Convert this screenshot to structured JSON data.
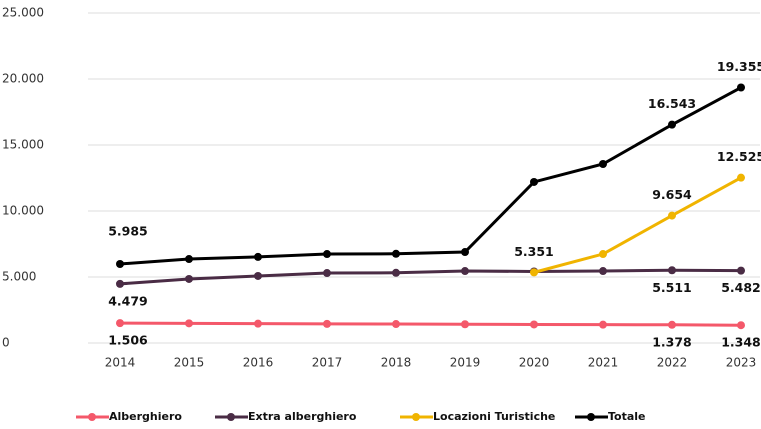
{
  "chart_data": {
    "type": "line",
    "categories": [
      "2014",
      "2015",
      "2016",
      "2017",
      "2018",
      "2019",
      "2020",
      "2021",
      "2022",
      "2023"
    ],
    "series": [
      {
        "name": "Alberghiero",
        "color": "#f4586a",
        "values": [
          1506,
          1490,
          1465,
          1450,
          1435,
          1420,
          1405,
          1390,
          1378,
          1348
        ],
        "value_labels": [
          "1.506",
          null,
          null,
          null,
          null,
          null,
          null,
          null,
          "1.378",
          "1.348"
        ]
      },
      {
        "name": "Extra alberghiero",
        "color": "#4a2c45",
        "values": [
          4479,
          4850,
          5080,
          5300,
          5320,
          5450,
          5420,
          5450,
          5511,
          5482
        ],
        "value_labels": [
          "4.479",
          null,
          null,
          null,
          null,
          null,
          null,
          null,
          "5.511",
          "5.482"
        ]
      },
      {
        "name": "Locazioni Turistiche",
        "color": "#f0b400",
        "values": [
          null,
          null,
          null,
          null,
          null,
          null,
          5351,
          6740,
          9654,
          12525
        ],
        "value_labels": [
          null,
          null,
          null,
          null,
          null,
          null,
          "5.351",
          null,
          "9.654",
          "12.525"
        ]
      },
      {
        "name": "Totale",
        "color": "#000000",
        "values": [
          5985,
          6360,
          6520,
          6740,
          6760,
          6890,
          12200,
          13560,
          16543,
          19355
        ],
        "value_labels": [
          "5.985",
          null,
          null,
          null,
          null,
          null,
          null,
          null,
          "16.543",
          "19.355"
        ]
      }
    ],
    "ylim": [
      0,
      25000
    ],
    "yticks": [
      0,
      {
        "value": 5000,
        "label": "5.000"
      },
      {
        "value": 10000,
        "label": "10.000"
      },
      {
        "value": 15000,
        "label": "15.000"
      },
      {
        "value": 20000,
        "label": "20.000"
      },
      {
        "value": 25000,
        "label": "25.000"
      }
    ],
    "grid": true,
    "legend": "bottom"
  }
}
